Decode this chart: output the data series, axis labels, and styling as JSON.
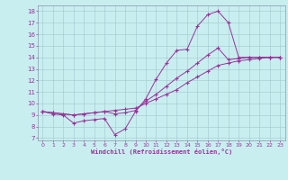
{
  "xlabel": "Windchill (Refroidissement éolien,°C)",
  "bg_color": "#c8eef0",
  "line_color": "#993399",
  "xlim": [
    -0.5,
    23.5
  ],
  "ylim": [
    6.8,
    18.5
  ],
  "xticks": [
    0,
    1,
    2,
    3,
    4,
    5,
    6,
    7,
    8,
    9,
    10,
    11,
    12,
    13,
    14,
    15,
    16,
    17,
    18,
    19,
    20,
    21,
    22,
    23
  ],
  "yticks": [
    7,
    8,
    9,
    10,
    11,
    12,
    13,
    14,
    15,
    16,
    17,
    18
  ],
  "line1_x": [
    0,
    1,
    2,
    3,
    4,
    5,
    6,
    7,
    8,
    9,
    10,
    11,
    12,
    13,
    14,
    15,
    16,
    17,
    18,
    19,
    20,
    21,
    22,
    23
  ],
  "line1_y": [
    9.3,
    9.1,
    9.0,
    8.3,
    8.5,
    8.6,
    8.7,
    7.3,
    7.8,
    9.3,
    10.4,
    12.1,
    13.5,
    14.6,
    14.7,
    16.7,
    17.7,
    18.0,
    17.0,
    14.0,
    14.0,
    14.0,
    14.0,
    14.0
  ],
  "line2_x": [
    0,
    1,
    2,
    3,
    4,
    5,
    6,
    7,
    8,
    9,
    10,
    11,
    12,
    13,
    14,
    15,
    16,
    17,
    18,
    19,
    20,
    21,
    22,
    23
  ],
  "line2_y": [
    9.3,
    9.2,
    9.1,
    9.0,
    9.1,
    9.2,
    9.3,
    9.1,
    9.2,
    9.4,
    10.2,
    10.8,
    11.5,
    12.2,
    12.8,
    13.5,
    14.2,
    14.8,
    13.8,
    13.9,
    14.0,
    14.0,
    14.0,
    14.0
  ],
  "line3_x": [
    0,
    1,
    2,
    3,
    4,
    5,
    6,
    7,
    8,
    9,
    10,
    11,
    12,
    13,
    14,
    15,
    16,
    17,
    18,
    19,
    20,
    21,
    22,
    23
  ],
  "line3_y": [
    9.3,
    9.2,
    9.1,
    9.0,
    9.1,
    9.2,
    9.3,
    9.4,
    9.5,
    9.6,
    10.0,
    10.4,
    10.8,
    11.2,
    11.8,
    12.3,
    12.8,
    13.3,
    13.5,
    13.7,
    13.8,
    13.9,
    14.0,
    14.0
  ]
}
